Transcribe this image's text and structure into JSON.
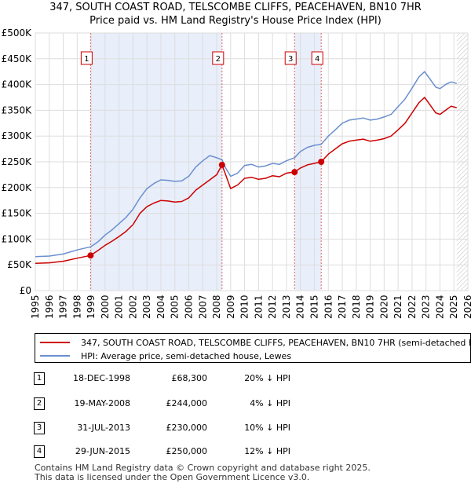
{
  "title_line1": "347, SOUTH COAST ROAD, TELSCOMBE CLIFFS, PEACEHAVEN, BN10 7HR",
  "title_line2": "Price paid vs. HM Land Registry's House Price Index (HPI)",
  "chart_data": {
    "type": "line",
    "xlim": [
      1995.0,
      2026.0
    ],
    "ylim": [
      0,
      500000
    ],
    "y_ticks": [
      0,
      50000,
      100000,
      150000,
      200000,
      250000,
      300000,
      350000,
      400000,
      450000,
      500000
    ],
    "y_tick_labels": [
      "£0",
      "£50K",
      "£100K",
      "£150K",
      "£200K",
      "£250K",
      "£300K",
      "£350K",
      "£400K",
      "£450K",
      "£500K"
    ],
    "x_ticks": [
      1995,
      1996,
      1997,
      1998,
      1999,
      2000,
      2001,
      2002,
      2003,
      2004,
      2005,
      2006,
      2007,
      2008,
      2009,
      2010,
      2011,
      2012,
      2013,
      2014,
      2015,
      2016,
      2017,
      2018,
      2019,
      2020,
      2021,
      2022,
      2023,
      2024,
      2025,
      2026
    ],
    "x_tick_labels": [
      "1995",
      "1996",
      "1997",
      "1998",
      "1999",
      "2000",
      "2001",
      "2002",
      "2003",
      "2004",
      "2005",
      "2006",
      "2007",
      "2008",
      "2009",
      "2010",
      "2011",
      "2012",
      "2013",
      "2014",
      "2015",
      "2016",
      "2017",
      "2018",
      "2019",
      "2020",
      "2021",
      "2022",
      "2023",
      "2024",
      "2025",
      "2026"
    ],
    "hatched_after": 2025.2,
    "shaded_ranges": [
      [
        1998.96,
        2008.38
      ],
      [
        2013.58,
        2015.49
      ]
    ],
    "series": [
      {
        "name": "347, SOUTH COAST ROAD, TELSCOMBE CLIFFS, PEACEHAVEN, BN10 7HR (semi-detached house)",
        "color": "#cc0000",
        "x": [
          1995.0,
          1996.0,
          1997.0,
          1998.0,
          1998.96,
          1999.5,
          2000.0,
          2000.5,
          2001.0,
          2001.5,
          2002.0,
          2002.5,
          2003.0,
          2003.5,
          2004.0,
          2004.5,
          2005.0,
          2005.5,
          2006.0,
          2006.5,
          2007.0,
          2007.5,
          2008.0,
          2008.38,
          2008.6,
          2009.0,
          2009.5,
          2010.0,
          2010.5,
          2011.0,
          2011.5,
          2012.0,
          2012.5,
          2013.0,
          2013.58,
          2014.0,
          2014.5,
          2015.0,
          2015.49,
          2016.0,
          2016.5,
          2017.0,
          2017.5,
          2018.0,
          2018.5,
          2019.0,
          2019.5,
          2020.0,
          2020.5,
          2021.0,
          2021.5,
          2022.0,
          2022.5,
          2022.9,
          2023.3,
          2023.7,
          2024.0,
          2024.4,
          2024.8,
          2025.2
        ],
        "y": [
          53000,
          54000,
          57000,
          63000,
          68300,
          78000,
          88000,
          96000,
          105000,
          115000,
          128000,
          150000,
          163000,
          170000,
          175000,
          174000,
          172000,
          173000,
          180000,
          195000,
          205000,
          215000,
          225000,
          244000,
          228000,
          198000,
          205000,
          218000,
          220000,
          216000,
          218000,
          223000,
          221000,
          228000,
          230000,
          238000,
          244000,
          247000,
          250000,
          265000,
          275000,
          285000,
          290000,
          292000,
          294000,
          290000,
          292000,
          295000,
          300000,
          312000,
          325000,
          345000,
          365000,
          375000,
          360000,
          345000,
          342000,
          350000,
          358000,
          355000
        ]
      },
      {
        "name": "HPI: Average price, semi-detached house, Lewes",
        "color": "#6a8fcf",
        "x": [
          1995.0,
          1996.0,
          1997.0,
          1998.0,
          1998.96,
          1999.5,
          2000.0,
          2000.5,
          2001.0,
          2001.5,
          2002.0,
          2002.5,
          2003.0,
          2003.5,
          2004.0,
          2004.5,
          2005.0,
          2005.5,
          2006.0,
          2006.5,
          2007.0,
          2007.5,
          2008.0,
          2008.38,
          2008.6,
          2009.0,
          2009.5,
          2010.0,
          2010.5,
          2011.0,
          2011.5,
          2012.0,
          2012.5,
          2013.0,
          2013.58,
          2014.0,
          2014.5,
          2015.0,
          2015.49,
          2016.0,
          2016.5,
          2017.0,
          2017.5,
          2018.0,
          2018.5,
          2019.0,
          2019.5,
          2020.0,
          2020.5,
          2021.0,
          2021.5,
          2022.0,
          2022.5,
          2022.9,
          2023.3,
          2023.7,
          2024.0,
          2024.4,
          2024.8,
          2025.2
        ],
        "y": [
          66000,
          67000,
          71000,
          79000,
          85000,
          95000,
          108000,
          118000,
          130000,
          142000,
          158000,
          180000,
          198000,
          208000,
          215000,
          214000,
          212000,
          213000,
          222000,
          240000,
          252000,
          262000,
          258000,
          254000,
          240000,
          222000,
          228000,
          243000,
          245000,
          240000,
          242000,
          247000,
          245000,
          252000,
          258000,
          270000,
          278000,
          282000,
          284000,
          300000,
          312000,
          325000,
          331000,
          333000,
          335000,
          331000,
          333000,
          337000,
          342000,
          357000,
          372000,
          393000,
          415000,
          425000,
          410000,
          395000,
          392000,
          400000,
          405000,
          402000
        ]
      }
    ],
    "sales": [
      {
        "id": "1",
        "x": 1998.96,
        "y": 68300
      },
      {
        "id": "2",
        "x": 2008.38,
        "y": 244000
      },
      {
        "id": "3",
        "x": 2013.58,
        "y": 230000
      },
      {
        "id": "4",
        "x": 2015.49,
        "y": 250000
      }
    ]
  },
  "legend": {
    "red_label": "347, SOUTH COAST ROAD, TELSCOMBE CLIFFS, PEACEHAVEN, BN10 7HR (semi-detached house)",
    "blue_label": "HPI: Average price, semi-detached house, Lewes"
  },
  "sales_table": [
    {
      "num": "1",
      "date": "18-DEC-1998",
      "price": "£68,300",
      "hpi": "20% ↓ HPI"
    },
    {
      "num": "2",
      "date": "19-MAY-2008",
      "price": "£244,000",
      "hpi": "4% ↓ HPI"
    },
    {
      "num": "3",
      "date": "31-JUL-2013",
      "price": "£230,000",
      "hpi": "10% ↓ HPI"
    },
    {
      "num": "4",
      "date": "29-JUN-2015",
      "price": "£250,000",
      "hpi": "12% ↓ HPI"
    }
  ],
  "footer_line1": "Contains HM Land Registry data © Crown copyright and database right 2025.",
  "footer_line2": "This data is licensed under the Open Government Licence v3.0."
}
